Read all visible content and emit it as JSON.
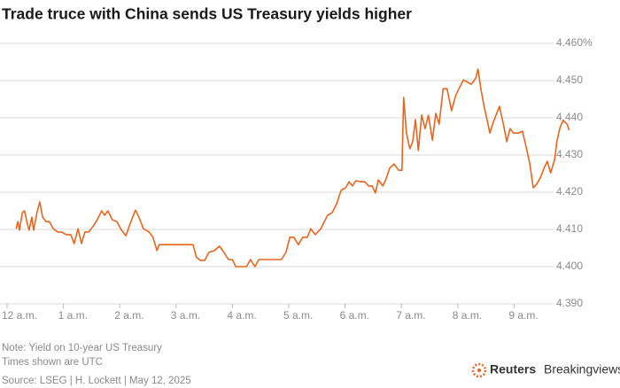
{
  "chart_data": {
    "type": "line",
    "title": "Trade truce with China sends US Treasury yields higher",
    "x": [
      0.16,
      0.19,
      0.22,
      0.27,
      0.31,
      0.35,
      0.39,
      0.44,
      0.47,
      0.53,
      0.58,
      0.63,
      0.69,
      0.75,
      0.82,
      0.9,
      0.97,
      1.05,
      1.13,
      1.19,
      1.26,
      1.32,
      1.38,
      1.45,
      1.53,
      1.6,
      1.68,
      1.73,
      1.79,
      1.87,
      1.95,
      2.03,
      2.11,
      2.17,
      2.23,
      2.28,
      2.34,
      2.42,
      2.52,
      2.59,
      2.66,
      2.7,
      2.86,
      3.02,
      3.18,
      3.3,
      3.36,
      3.43,
      3.51,
      3.58,
      3.68,
      3.77,
      3.85,
      3.93,
      4.0,
      4.06,
      4.15,
      4.25,
      4.32,
      4.4,
      4.47,
      4.59,
      4.75,
      4.87,
      4.95,
      5.02,
      5.09,
      5.17,
      5.25,
      5.33,
      5.39,
      5.47,
      5.57,
      5.63,
      5.69,
      5.77,
      5.85,
      5.93,
      6.01,
      6.07,
      6.13,
      6.19,
      6.29,
      6.35,
      6.42,
      6.48,
      6.54,
      6.59,
      6.67,
      6.73,
      6.79,
      6.87,
      6.95,
      7.01,
      7.04,
      7.09,
      7.15,
      7.2,
      7.25,
      7.3,
      7.36,
      7.42,
      7.48,
      7.55,
      7.61,
      7.67,
      7.74,
      7.81,
      7.89,
      7.96,
      8.02,
      8.1,
      8.16,
      8.24,
      8.32,
      8.36,
      8.41,
      8.46,
      8.52,
      8.57,
      8.63,
      8.68,
      8.74,
      8.81,
      8.87,
      8.93,
      8.99,
      9.07,
      9.15,
      9.21,
      9.28,
      9.34,
      9.4,
      9.47,
      9.53,
      9.59,
      9.65,
      9.72,
      9.76,
      9.81,
      9.87,
      9.94,
      9.98
    ],
    "series": [
      {
        "color": "#e8651e",
        "values": [
          4.4102,
          4.4121,
          4.4098,
          4.4145,
          4.415,
          4.4121,
          4.4098,
          4.4133,
          4.4098,
          4.4145,
          4.4174,
          4.4133,
          4.4121,
          4.4121,
          4.4102,
          4.4093,
          4.4093,
          4.4086,
          4.4086,
          4.4062,
          4.4102,
          4.4062,
          4.4093,
          4.4093,
          4.4109,
          4.4126,
          4.415,
          4.4138,
          4.415,
          4.4126,
          4.4121,
          4.4098,
          4.4083,
          4.4109,
          4.4133,
          4.4152,
          4.4133,
          4.4102,
          4.4093,
          4.4079,
          4.4043,
          4.4059,
          4.4059,
          4.4059,
          4.4059,
          4.4059,
          4.4026,
          4.4017,
          4.4017,
          4.4038,
          4.4043,
          4.4055,
          4.4038,
          4.4019,
          4.4019,
          4.4,
          4.4,
          4.4,
          4.4019,
          4.4,
          4.4019,
          4.4019,
          4.4019,
          4.4019,
          4.4038,
          4.4079,
          4.4079,
          4.4059,
          4.4079,
          4.4079,
          4.4102,
          4.4086,
          4.4102,
          4.4121,
          4.4138,
          4.4145,
          4.4169,
          4.4205,
          4.4212,
          4.4228,
          4.4217,
          4.4231,
          4.4228,
          4.4228,
          4.4217,
          4.4217,
          4.4198,
          4.4233,
          4.4217,
          4.4236,
          4.4264,
          4.4276,
          4.4259,
          4.4259,
          4.4455,
          4.4359,
          4.4317,
          4.4336,
          4.4395,
          4.4312,
          4.4407,
          4.4371,
          4.4407,
          4.434,
          4.4412,
          4.4383,
          4.4478,
          4.4478,
          4.4419,
          4.4459,
          4.4478,
          4.4502,
          4.4497,
          4.449,
          4.4507,
          4.4531,
          4.4478,
          4.4436,
          4.4395,
          4.4359,
          4.4388,
          4.4407,
          4.4431,
          4.4383,
          4.4336,
          4.4371,
          4.4359,
          4.4359,
          4.4364,
          4.4324,
          4.4276,
          4.4212,
          4.4221,
          4.424,
          4.4264,
          4.4283,
          4.4252,
          4.4288,
          4.4336,
          4.4371,
          4.4393,
          4.4383,
          4.4367
        ]
      }
    ],
    "xlim": [
      0,
      10
    ],
    "xticks": [
      {
        "value": 0,
        "label": "12 a.m."
      },
      {
        "value": 1,
        "label": "1 a.m."
      },
      {
        "value": 2,
        "label": "2 a.m."
      },
      {
        "value": 3,
        "label": "3 a.m."
      },
      {
        "value": 4,
        "label": "4 a.m."
      },
      {
        "value": 5,
        "label": "5 a.m."
      },
      {
        "value": 6,
        "label": "6 a.m."
      },
      {
        "value": 7,
        "label": "7 a.m."
      },
      {
        "value": 8,
        "label": "8 a.m."
      },
      {
        "value": 9,
        "label": "9 a.m."
      }
    ],
    "ylim": [
      4.39,
      4.46
    ],
    "yticks": [
      {
        "value": 4.39,
        "label": "4.390"
      },
      {
        "value": 4.4,
        "label": "4.400"
      },
      {
        "value": 4.41,
        "label": "4.410"
      },
      {
        "value": 4.42,
        "label": "4.420"
      },
      {
        "value": 4.43,
        "label": "4.430"
      },
      {
        "value": 4.44,
        "label": "4.440"
      },
      {
        "value": 4.45,
        "label": "4.450"
      },
      {
        "value": 4.46,
        "label": "4.460%"
      }
    ],
    "grid": true,
    "notes": [
      "Note: Yield on 10-year US Treasury",
      "Times shown are UTC"
    ],
    "source": "Source: LSEG | H. Lockett | May 12, 2025",
    "logo": [
      "Reuters",
      "Breakingviews"
    ]
  }
}
